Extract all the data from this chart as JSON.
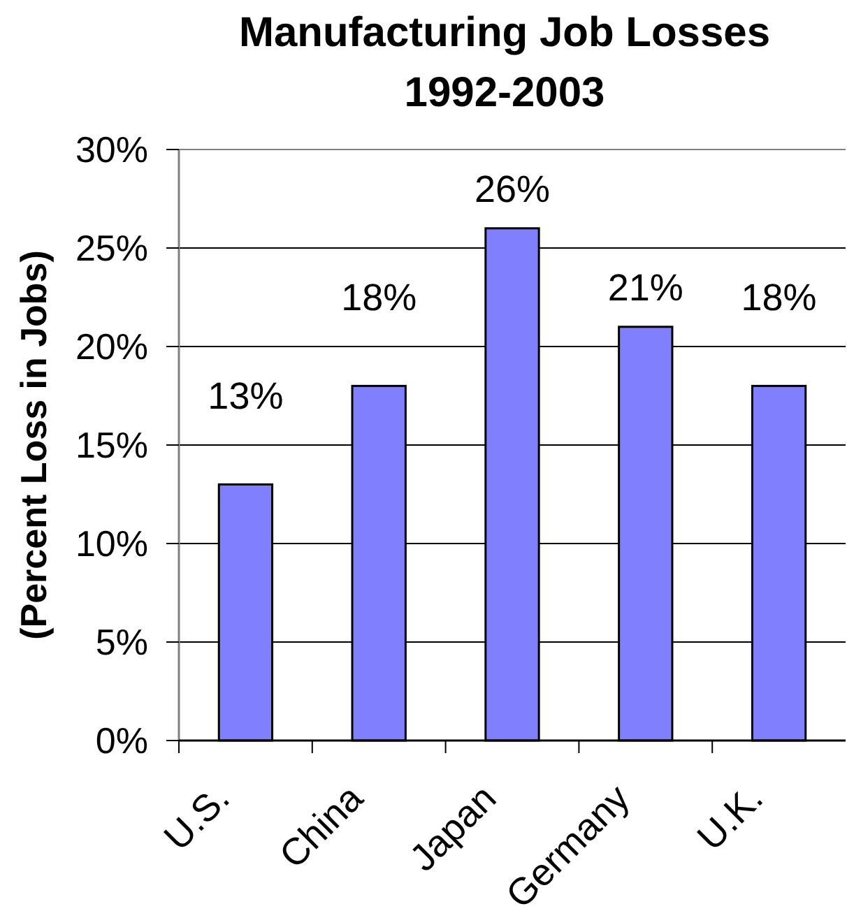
{
  "chart_data": {
    "type": "bar",
    "title": "Manufacturing Job Losses\n1992-2003",
    "ylabel": "(Percent Loss in Jobs)",
    "categories": [
      "U.S.",
      "China",
      "Japan",
      "Germany",
      "U.K."
    ],
    "values": [
      13,
      18,
      26,
      21,
      18
    ],
    "color": "#8080ff",
    "value_labels": [
      "13%",
      "18%",
      "26%",
      "21%",
      "18%"
    ],
    "ylim": [
      0,
      30
    ],
    "yticks": [
      {
        "value": 0,
        "label": "0%"
      },
      {
        "value": 5,
        "label": "5%"
      },
      {
        "value": 10,
        "label": "10%"
      },
      {
        "value": 15,
        "label": "15%"
      },
      {
        "value": 20,
        "label": "20%"
      },
      {
        "value": 25,
        "label": "25%"
      },
      {
        "value": 30,
        "label": "30%"
      }
    ],
    "grid": "y"
  }
}
